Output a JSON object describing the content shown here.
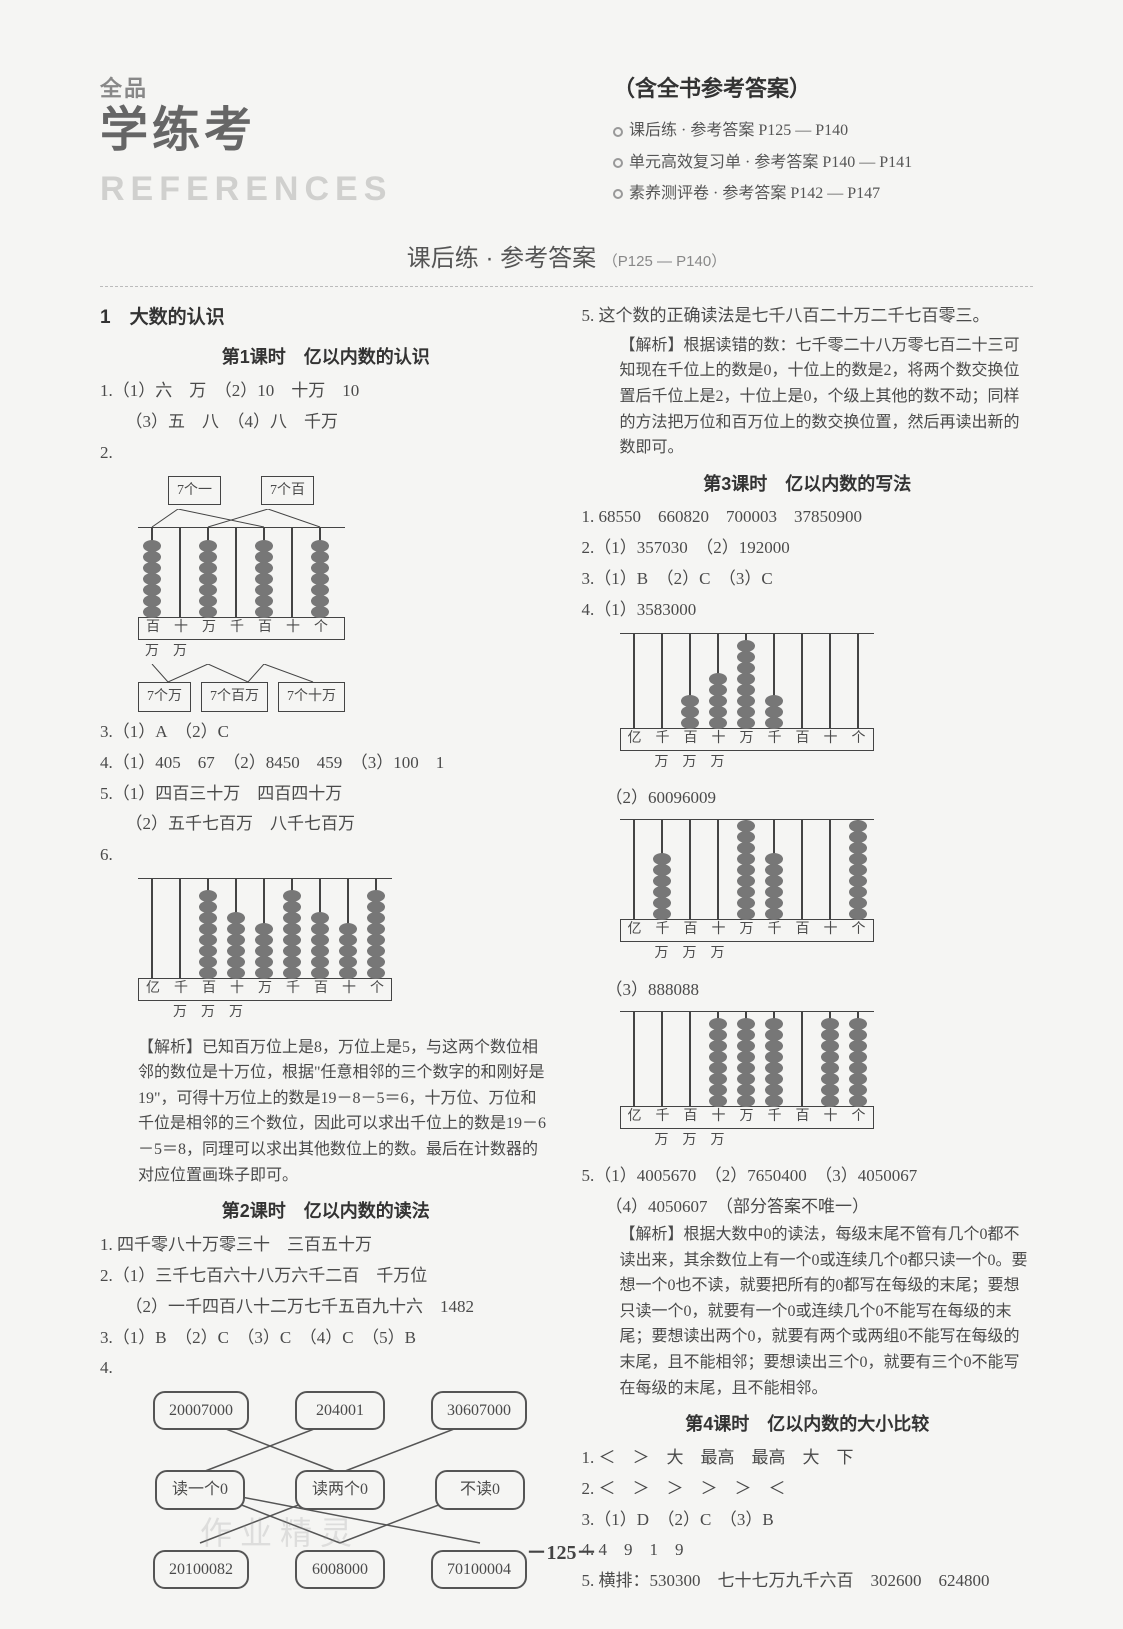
{
  "brand": {
    "top": "全品",
    "main": "学练考",
    "sub": "REFERENCES"
  },
  "header": {
    "title": "（含全书参考答案）",
    "lines": [
      "课后练 · 参考答案  P125 — P140",
      "单元高效复习单 · 参考答案  P140 — P141",
      "素养测评卷 · 参考答案  P142 — P147"
    ]
  },
  "section": {
    "title": "课后练 · 参考答案",
    "pages": "（P125 — P140）"
  },
  "left": {
    "chapter": "1　大数的认识",
    "lesson1": {
      "title": "第1课时　亿以内数的认识",
      "items": [
        "1.（1）六　万　（2）10　十万　10",
        "　　（3）五　八　（4）八　千万",
        "2.",
        "3.（1）A　（2）C",
        "4.（1）405　67　（2）8450　459　（3）100　1",
        "5.（1）四百三十万　四百四十万",
        "　　（2）五千七百万　八千七百万",
        "6."
      ],
      "abacus2": {
        "top_boxes": [
          "7个一",
          "7个百"
        ],
        "rods": [
          {
            "beads": 7
          },
          {
            "beads": 0
          },
          {
            "beads": 7
          },
          {
            "beads": 0
          },
          {
            "beads": 7
          },
          {
            "beads": 0
          },
          {
            "beads": 7
          }
        ],
        "labels": [
          "百",
          "十",
          "万",
          "千",
          "百",
          "十",
          "个"
        ],
        "sub": [
          "万",
          "万",
          "",
          "",
          "",
          "",
          ""
        ],
        "bottom_boxes": [
          "7个万",
          "7个百万",
          "7个十万"
        ]
      },
      "abacus6": {
        "rods": [
          {
            "beads": 0
          },
          {
            "beads": 0
          },
          {
            "beads": 8
          },
          {
            "beads": 6
          },
          {
            "beads": 5
          },
          {
            "beads": 8
          },
          {
            "beads": 6
          },
          {
            "beads": 5
          },
          {
            "beads": 8
          }
        ],
        "labels": [
          "亿",
          "千",
          "百",
          "十",
          "万",
          "千",
          "百",
          "十",
          "个"
        ],
        "sub": [
          "",
          "万",
          "万",
          "万",
          "",
          "",
          "",
          "",
          ""
        ]
      },
      "analysis": "【解析】已知百万位上是8，万位上是5，与这两个数位相邻的数位是十万位，根据\"任意相邻的三个数字的和刚好是19\"，可得十万位上的数是19－8－5＝6，十万位、万位和千位是相邻的三个数位，因此可以求出千位上的数是19－6－5＝8，同理可以求出其他数位上的数。最后在计数器的对应位置画珠子即可。"
    },
    "lesson2": {
      "title": "第2课时　亿以内数的读法",
      "items": [
        "1. 四千零八十万零三十　三百五十万",
        "2.（1）三千七百六十八万六千二百　千万位",
        "　　（2）一千四百八十二万七千五百九十六　1482",
        "3.（1）B　（2）C　（3）C　（4）C　（5）B",
        "4."
      ],
      "match": {
        "top": [
          "20007000",
          "204001",
          "30607000"
        ],
        "mid": [
          "读一个0",
          "读两个0",
          "不读0"
        ],
        "bot": [
          "20100082",
          "6008000",
          "70100004"
        ]
      }
    }
  },
  "right": {
    "q5": "5. 这个数的正确读法是七千八百二十万二千七百零三。",
    "q5_analysis": "【解析】根据读错的数：七千零二十八万零七百二十三可知现在千位上的数是0，十位上的数是2，将两个数交换位置后千位上是2，十位上是0，个级上其他的数不动；同样的方法把万位和百万位上的数交换位置，然后再读出新的数即可。",
    "lesson3": {
      "title": "第3课时　亿以内数的写法",
      "items": [
        "1. 68550　660820　700003　37850900",
        "2.（1）357030　（2）192000",
        "3.（1）B　（2）C　（3）C",
        "4.（1）3583000"
      ],
      "abacus_labels": [
        "亿",
        "千",
        "百",
        "十",
        "万",
        "千",
        "百",
        "十",
        "个"
      ],
      "abacus_sub": [
        "",
        "万",
        "万",
        "万",
        "",
        "",
        "",
        "",
        ""
      ],
      "ab1": [
        {
          "beads": 0
        },
        {
          "beads": 0
        },
        {
          "beads": 3
        },
        {
          "beads": 5
        },
        {
          "beads": 8
        },
        {
          "beads": 3
        },
        {
          "beads": 0
        },
        {
          "beads": 0
        },
        {
          "beads": 0
        }
      ],
      "sub2": "（2）60096009",
      "ab2": [
        {
          "beads": 0
        },
        {
          "beads": 6
        },
        {
          "beads": 0
        },
        {
          "beads": 0
        },
        {
          "beads": 9
        },
        {
          "beads": 6
        },
        {
          "beads": 0
        },
        {
          "beads": 0
        },
        {
          "beads": 9
        }
      ],
      "sub3": "（3）888088",
      "ab3": [
        {
          "beads": 0
        },
        {
          "beads": 0
        },
        {
          "beads": 0
        },
        {
          "beads": 8
        },
        {
          "beads": 8
        },
        {
          "beads": 8
        },
        {
          "beads": 0
        },
        {
          "beads": 8
        },
        {
          "beads": 8
        }
      ],
      "q5": "5.（1）4005670　（2）7650400　（3）4050067",
      "q5b": "（4）4050607　（部分答案不唯一）",
      "analysis": "【解析】根据大数中0的读法，每级末尾不管有几个0都不读出来，其余数位上有一个0或连续几个0都只读一个0。要想一个0也不读，就要把所有的0都写在每级的末尾；要想只读一个0，就要有一个0或连续几个0不能写在每级的末尾；要想读出两个0，就要有两个或两组0不能写在每级的末尾，且不能相邻；要想读出三个0，就要有三个0不能写在每级的末尾，且不能相邻。"
    },
    "lesson4": {
      "title": "第4课时　亿以内数的大小比较",
      "items": [
        "1. ＜　＞　大　最高　最高　大　下",
        "2. ＜　＞　＞　＞　＞　＜",
        "3.（1）D　（2）C　（3）B",
        "4. 4　9　1　9",
        "5. 横排：530300　七十七万九千六百　302600　624800"
      ]
    }
  },
  "page_number": "－125－",
  "watermark": "作业精灵"
}
